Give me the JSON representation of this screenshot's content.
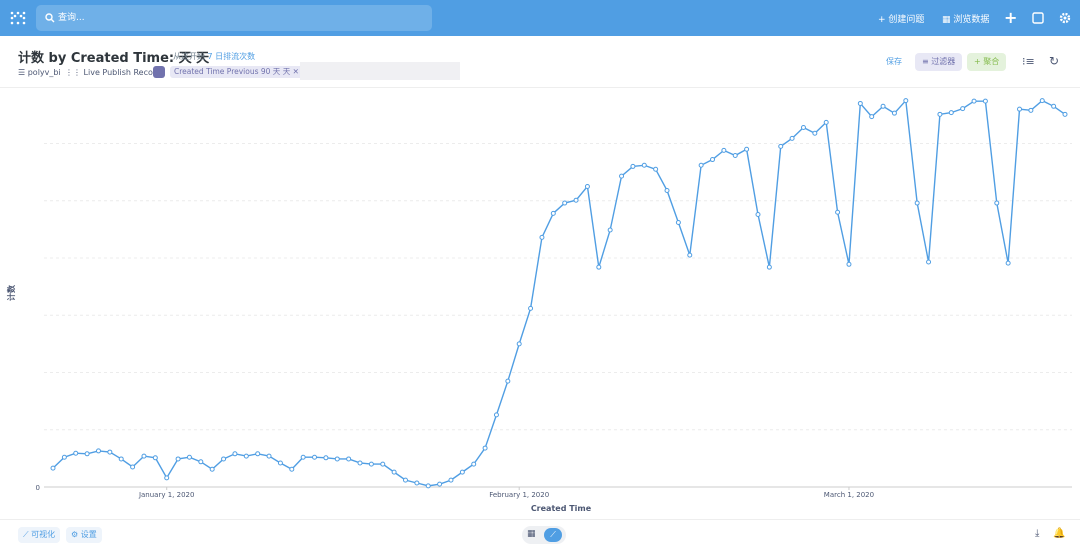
{
  "nav": {
    "search": "查询...",
    "new_question": "创建问题",
    "browse": "浏览数据"
  },
  "header": {
    "title": "计数 by Created Time: 天 天",
    "subtitle": "从这开始",
    "subtitle_link": "7 日排流次数",
    "database": "polyv_bi",
    "table": "Live Publish Record",
    "filter": "Created Time Previous 90 天 天",
    "save": "保存",
    "filter_button": "过滤器",
    "summarize": "聚合"
  },
  "footer": {
    "visualization": "可视化",
    "settings": "设置"
  },
  "chart_data": {
    "type": "line",
    "x_label": "Created Time",
    "y_label": "计数",
    "color": "#509ee3",
    "grid": true,
    "xlim": [
      "2019-12-22",
      "2020-03-20"
    ],
    "xticks": [
      {
        "value": "2020-01-01",
        "label": "January 1, 2020"
      },
      {
        "value": "2020-02-01",
        "label": "February 1, 2020"
      },
      {
        "value": "2020-03-01",
        "label": "March 1, 2020"
      }
    ],
    "ylim": [
      0,
      6.9
    ],
    "yticks": [
      0
    ],
    "ygrid": [
      1,
      2,
      3,
      4,
      5,
      6
    ],
    "x": [
      "2019-12-22",
      "2019-12-23",
      "2019-12-24",
      "2019-12-25",
      "2019-12-26",
      "2019-12-27",
      "2019-12-28",
      "2019-12-29",
      "2019-12-30",
      "2019-12-31",
      "2020-01-01",
      "2020-01-02",
      "2020-01-03",
      "2020-01-04",
      "2020-01-05",
      "2020-01-06",
      "2020-01-07",
      "2020-01-08",
      "2020-01-09",
      "2020-01-10",
      "2020-01-11",
      "2020-01-12",
      "2020-01-13",
      "2020-01-14",
      "2020-01-15",
      "2020-01-16",
      "2020-01-17",
      "2020-01-18",
      "2020-01-19",
      "2020-01-20",
      "2020-01-21",
      "2020-01-22",
      "2020-01-23",
      "2020-01-24",
      "2020-01-25",
      "2020-01-26",
      "2020-01-27",
      "2020-01-28",
      "2020-01-29",
      "2020-01-30",
      "2020-01-31",
      "2020-02-01",
      "2020-02-02",
      "2020-02-03",
      "2020-02-04",
      "2020-02-05",
      "2020-02-06",
      "2020-02-07",
      "2020-02-08",
      "2020-02-09",
      "2020-02-10",
      "2020-02-11",
      "2020-02-12",
      "2020-02-13",
      "2020-02-14",
      "2020-02-15",
      "2020-02-16",
      "2020-02-17",
      "2020-02-18",
      "2020-02-19",
      "2020-02-20",
      "2020-02-21",
      "2020-02-22",
      "2020-02-23",
      "2020-02-24",
      "2020-02-25",
      "2020-02-26",
      "2020-02-27",
      "2020-02-28",
      "2020-02-29",
      "2020-03-01",
      "2020-03-02",
      "2020-03-03",
      "2020-03-04",
      "2020-03-05",
      "2020-03-06",
      "2020-03-07",
      "2020-03-08",
      "2020-03-09",
      "2020-03-10",
      "2020-03-11",
      "2020-03-12",
      "2020-03-13",
      "2020-03-14",
      "2020-03-15",
      "2020-03-16",
      "2020-03-17",
      "2020-03-18",
      "2020-03-19",
      "2020-03-20"
    ],
    "values": [
      0.33,
      0.52,
      0.59,
      0.58,
      0.63,
      0.61,
      0.49,
      0.35,
      0.54,
      0.51,
      0.16,
      0.49,
      0.52,
      0.44,
      0.31,
      0.49,
      0.58,
      0.54,
      0.58,
      0.54,
      0.42,
      0.31,
      0.52,
      0.52,
      0.51,
      0.49,
      0.49,
      0.42,
      0.4,
      0.4,
      0.26,
      0.12,
      0.07,
      0.02,
      0.05,
      0.12,
      0.26,
      0.4,
      0.68,
      1.26,
      1.85,
      2.5,
      3.12,
      4.36,
      4.78,
      4.96,
      5.01,
      5.25,
      3.84,
      4.49,
      5.43,
      5.6,
      5.62,
      5.55,
      5.18,
      4.62,
      4.05,
      5.62,
      5.72,
      5.88,
      5.79,
      5.9,
      4.76,
      3.84,
      5.95,
      6.09,
      6.28,
      6.18,
      6.37,
      4.8,
      3.89,
      6.7,
      6.47,
      6.65,
      6.53,
      6.75,
      4.96,
      3.93,
      6.51,
      6.54,
      6.61,
      6.74,
      6.74,
      4.96,
      3.91,
      6.6,
      6.58,
      6.75,
      6.65,
      6.51
    ]
  }
}
